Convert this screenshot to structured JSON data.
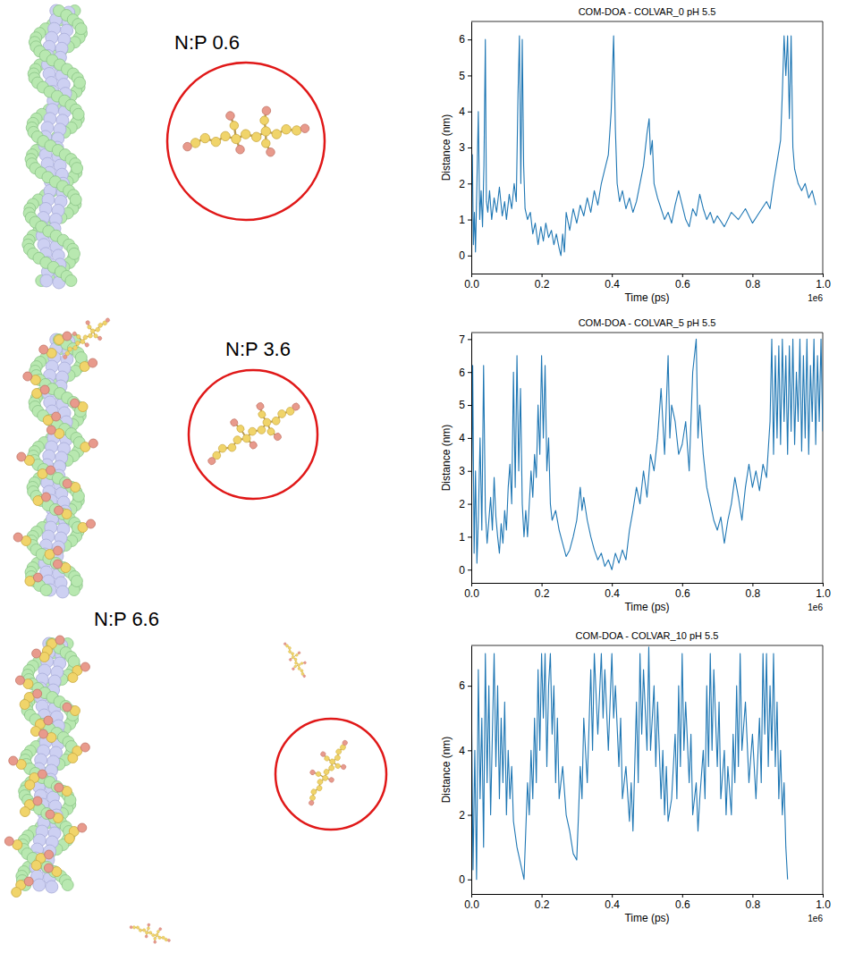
{
  "images": [
    {
      "label": "N:P 0.6"
    },
    {
      "label": "N:P 3.6"
    },
    {
      "label": "N:P 6.6"
    }
  ],
  "chart_data": [
    {
      "type": "line",
      "title": "COM-DOA - COLVAR_0 pH 5.5",
      "x_label": "Time (ps)",
      "y_label": "Distance (nm)",
      "x_offset_label": "1e6",
      "color": "#1f77b4",
      "grid": false,
      "xlim": [
        0,
        1
      ],
      "xticks": [
        {
          "value": 0,
          "label": "0.0"
        },
        {
          "value": 0.2,
          "label": "0.2"
        },
        {
          "value": 0.4,
          "label": "0.4"
        },
        {
          "value": 0.6,
          "label": "0.6"
        },
        {
          "value": 0.8,
          "label": "0.8"
        },
        {
          "value": 1,
          "label": "1.0"
        }
      ],
      "ylim": [
        -0.5,
        6.5
      ],
      "yticks": [
        0,
        1,
        2,
        3,
        4,
        5,
        6
      ],
      "x": [
        0,
        0.003,
        0.006,
        0.009,
        0.012,
        0.016,
        0.02,
        0.024,
        0.028,
        0.032,
        0.036,
        0.04,
        0.043,
        0.047,
        0.052,
        0.058,
        0.065,
        0.072,
        0.08,
        0.088,
        0.095,
        0.1,
        0.108,
        0.115,
        0.122,
        0.128,
        0.133,
        0.137,
        0.141,
        0.145,
        0.149,
        0.153,
        0.16,
        0.168,
        0.175,
        0.182,
        0.19,
        0.198,
        0.205,
        0.212,
        0.22,
        0.228,
        0.235,
        0.242,
        0.25,
        0.255,
        0.26,
        0.265,
        0.27,
        0.28,
        0.29,
        0.3,
        0.31,
        0.32,
        0.33,
        0.34,
        0.35,
        0.36,
        0.37,
        0.38,
        0.39,
        0.398,
        0.405,
        0.41,
        0.415,
        0.422,
        0.43,
        0.44,
        0.45,
        0.46,
        0.47,
        0.48,
        0.49,
        0.5,
        0.506,
        0.51,
        0.515,
        0.52,
        0.53,
        0.54,
        0.55,
        0.56,
        0.57,
        0.58,
        0.59,
        0.6,
        0.61,
        0.62,
        0.63,
        0.64,
        0.65,
        0.66,
        0.67,
        0.68,
        0.69,
        0.7,
        0.72,
        0.74,
        0.76,
        0.78,
        0.8,
        0.82,
        0.84,
        0.85,
        0.86,
        0.87,
        0.88,
        0.885,
        0.89,
        0.895,
        0.9,
        0.905,
        0.91,
        0.915,
        0.92,
        0.93,
        0.94,
        0.95,
        0.96,
        0.97,
        0.98
      ],
      "values": [
        1.5,
        2.8,
        0.3,
        1.2,
        0.1,
        2.0,
        4.0,
        1.0,
        1.8,
        0.8,
        2.5,
        6.0,
        1.5,
        1.2,
        1.8,
        1.0,
        1.6,
        1.2,
        1.9,
        1.1,
        1.5,
        1.0,
        1.7,
        1.3,
        2.0,
        1.5,
        4.5,
        6.1,
        2.0,
        6.0,
        2.5,
        1.3,
        1.0,
        1.2,
        0.6,
        0.9,
        0.3,
        0.8,
        0.4,
        0.9,
        0.5,
        0.7,
        0.3,
        0.6,
        0.2,
        0.0,
        0.6,
        0.1,
        1.2,
        0.7,
        1.3,
        0.9,
        1.4,
        1.1,
        1.6,
        1.2,
        1.8,
        1.4,
        2.0,
        2.4,
        2.8,
        4.0,
        6.1,
        3.5,
        2.0,
        1.5,
        1.8,
        1.3,
        1.6,
        1.2,
        1.5,
        2.0,
        2.5,
        3.4,
        3.8,
        2.8,
        3.2,
        2.0,
        1.6,
        1.3,
        1.0,
        1.2,
        0.9,
        1.4,
        1.8,
        1.4,
        1.0,
        0.8,
        1.3,
        1.1,
        1.7,
        1.3,
        1.0,
        1.2,
        0.9,
        1.1,
        0.8,
        1.2,
        1.0,
        1.3,
        0.9,
        1.2,
        1.5,
        1.3,
        2.0,
        2.6,
        3.2,
        4.5,
        6.1,
        5.0,
        6.1,
        3.8,
        6.1,
        3.0,
        2.4,
        2.0,
        1.8,
        2.0,
        1.6,
        1.8,
        1.4
      ]
    },
    {
      "type": "line",
      "title": "COM-DOA - COLVAR_5 pH 5.5",
      "x_label": "Time (ps)",
      "y_label": "Distance (nm)",
      "x_offset_label": "1e6",
      "color": "#1f77b4",
      "grid": false,
      "xlim": [
        0,
        1
      ],
      "xticks": [
        {
          "value": 0,
          "label": "0.0"
        },
        {
          "value": 0.2,
          "label": "0.2"
        },
        {
          "value": 0.4,
          "label": "0.4"
        },
        {
          "value": 0.6,
          "label": "0.6"
        },
        {
          "value": 0.8,
          "label": "0.8"
        },
        {
          "value": 1,
          "label": "1.0"
        }
      ],
      "ylim": [
        -0.4,
        7.2
      ],
      "yticks": [
        0,
        1,
        2,
        3,
        4,
        5,
        6,
        7
      ],
      "x": [
        0,
        0.004,
        0.008,
        0.012,
        0.016,
        0.02,
        0.025,
        0.03,
        0.035,
        0.04,
        0.045,
        0.05,
        0.055,
        0.06,
        0.065,
        0.07,
        0.075,
        0.08,
        0.085,
        0.09,
        0.095,
        0.1,
        0.105,
        0.11,
        0.115,
        0.12,
        0.125,
        0.13,
        0.135,
        0.14,
        0.145,
        0.15,
        0.155,
        0.16,
        0.165,
        0.17,
        0.175,
        0.18,
        0.185,
        0.19,
        0.195,
        0.2,
        0.205,
        0.21,
        0.215,
        0.22,
        0.225,
        0.23,
        0.24,
        0.25,
        0.26,
        0.27,
        0.28,
        0.29,
        0.3,
        0.31,
        0.315,
        0.32,
        0.33,
        0.34,
        0.35,
        0.36,
        0.37,
        0.38,
        0.39,
        0.4,
        0.41,
        0.42,
        0.43,
        0.44,
        0.45,
        0.46,
        0.47,
        0.48,
        0.49,
        0.5,
        0.51,
        0.52,
        0.53,
        0.54,
        0.55,
        0.56,
        0.565,
        0.57,
        0.58,
        0.59,
        0.6,
        0.61,
        0.62,
        0.63,
        0.64,
        0.645,
        0.65,
        0.66,
        0.67,
        0.68,
        0.69,
        0.7,
        0.71,
        0.72,
        0.73,
        0.74,
        0.75,
        0.76,
        0.77,
        0.78,
        0.79,
        0.8,
        0.81,
        0.82,
        0.83,
        0.84,
        0.85,
        0.855,
        0.86,
        0.865,
        0.87,
        0.875,
        0.88,
        0.885,
        0.89,
        0.895,
        0.9,
        0.905,
        0.91,
        0.915,
        0.92,
        0.925,
        0.93,
        0.935,
        0.94,
        0.945,
        0.95,
        0.955,
        0.96,
        0.965,
        0.97,
        0.975,
        0.98,
        0.985,
        0.99,
        0.995,
        1.0
      ],
      "values": [
        1.0,
        6.2,
        0.5,
        3.0,
        0.2,
        1.5,
        4.0,
        1.2,
        6.2,
        1.8,
        0.8,
        1.5,
        2.2,
        1.2,
        2.8,
        1.6,
        1.0,
        0.5,
        1.4,
        0.8,
        1.8,
        1.2,
        2.5,
        3.2,
        2.0,
        6.0,
        2.5,
        6.5,
        3.0,
        5.5,
        2.0,
        1.0,
        1.8,
        1.0,
        2.0,
        3.0,
        2.2,
        3.5,
        2.8,
        5.0,
        3.5,
        6.5,
        4.0,
        6.2,
        3.0,
        4.0,
        2.0,
        1.5,
        1.8,
        1.2,
        0.8,
        0.4,
        0.6,
        1.0,
        1.5,
        2.5,
        1.8,
        2.2,
        1.5,
        1.0,
        0.6,
        0.3,
        0.5,
        0.1,
        0.3,
        0.0,
        0.5,
        0.2,
        0.6,
        0.3,
        1.2,
        1.8,
        2.5,
        2.0,
        3.0,
        2.2,
        3.5,
        3.0,
        4.0,
        5.5,
        3.5,
        6.5,
        4.0,
        5.0,
        4.5,
        3.5,
        3.8,
        4.5,
        3.0,
        6.0,
        7.0,
        4.0,
        5.0,
        3.5,
        2.5,
        2.0,
        1.5,
        1.2,
        1.6,
        0.8,
        1.5,
        2.0,
        2.8,
        2.2,
        1.5,
        2.5,
        3.2,
        2.5,
        3.0,
        2.4,
        3.2,
        2.8,
        4.5,
        7.0,
        3.5,
        6.5,
        4.0,
        6.8,
        3.8,
        7.0,
        4.5,
        6.5,
        3.5,
        6.8,
        4.2,
        7.0,
        3.8,
        6.0,
        4.5,
        7.0,
        3.6,
        6.5,
        4.0,
        7.0,
        3.5,
        6.2,
        4.5,
        7.0,
        3.8,
        6.5,
        4.5,
        7.0,
        4.2
      ]
    },
    {
      "type": "line",
      "title": "COM-DOA - COLVAR_10 pH 5.5",
      "x_label": "Time (ps)",
      "y_label": "Distance (nm)",
      "x_offset_label": "1e6",
      "color": "#1f77b4",
      "grid": false,
      "xlim": [
        0,
        1
      ],
      "xticks": [
        {
          "value": 0,
          "label": "0.0"
        },
        {
          "value": 0.2,
          "label": "0.2"
        },
        {
          "value": 0.4,
          "label": "0.4"
        },
        {
          "value": 0.6,
          "label": "0.6"
        },
        {
          "value": 0.8,
          "label": "0.8"
        },
        {
          "value": 1,
          "label": "1.0"
        }
      ],
      "ylim": [
        -0.45,
        7.25
      ],
      "yticks": [
        0,
        2,
        4,
        6
      ],
      "x": [
        0,
        0.005,
        0.01,
        0.015,
        0.02,
        0.025,
        0.03,
        0.035,
        0.04,
        0.045,
        0.05,
        0.055,
        0.06,
        0.065,
        0.07,
        0.075,
        0.08,
        0.085,
        0.09,
        0.095,
        0.1,
        0.105,
        0.11,
        0.115,
        0.12,
        0.13,
        0.14,
        0.15,
        0.155,
        0.16,
        0.165,
        0.17,
        0.175,
        0.18,
        0.185,
        0.19,
        0.195,
        0.2,
        0.205,
        0.21,
        0.215,
        0.22,
        0.225,
        0.23,
        0.235,
        0.24,
        0.245,
        0.25,
        0.26,
        0.27,
        0.28,
        0.29,
        0.3,
        0.305,
        0.31,
        0.315,
        0.32,
        0.33,
        0.34,
        0.345,
        0.35,
        0.36,
        0.37,
        0.375,
        0.38,
        0.39,
        0.4,
        0.405,
        0.41,
        0.42,
        0.425,
        0.43,
        0.44,
        0.45,
        0.455,
        0.46,
        0.465,
        0.47,
        0.475,
        0.48,
        0.485,
        0.49,
        0.5,
        0.505,
        0.51,
        0.52,
        0.525,
        0.53,
        0.54,
        0.545,
        0.55,
        0.555,
        0.56,
        0.57,
        0.58,
        0.585,
        0.59,
        0.595,
        0.6,
        0.605,
        0.61,
        0.62,
        0.625,
        0.63,
        0.64,
        0.645,
        0.65,
        0.66,
        0.665,
        0.67,
        0.675,
        0.68,
        0.685,
        0.69,
        0.7,
        0.705,
        0.71,
        0.72,
        0.725,
        0.73,
        0.74,
        0.745,
        0.75,
        0.755,
        0.76,
        0.765,
        0.77,
        0.78,
        0.79,
        0.8,
        0.81,
        0.82,
        0.825,
        0.83,
        0.835,
        0.84,
        0.845,
        0.85,
        0.855,
        0.86,
        0.865,
        0.87,
        0.875,
        0.88,
        0.885,
        0.89,
        0.895,
        0.9
      ],
      "values": [
        6.0,
        0.3,
        4.0,
        0.0,
        6.5,
        2.5,
        5.0,
        1.0,
        7.0,
        3.0,
        6.0,
        2.0,
        4.5,
        7.0,
        3.5,
        6.0,
        2.5,
        5.0,
        3.0,
        5.5,
        2.0,
        4.0,
        2.5,
        3.5,
        1.8,
        1.0,
        0.5,
        0.0,
        1.5,
        3.0,
        2.0,
        4.0,
        2.5,
        5.0,
        3.0,
        6.5,
        4.0,
        7.0,
        5.0,
        7.0,
        3.5,
        6.0,
        7.0,
        4.5,
        6.0,
        3.0,
        5.0,
        2.5,
        3.5,
        2.0,
        1.5,
        0.8,
        0.6,
        2.0,
        3.5,
        2.5,
        5.0,
        3.0,
        6.5,
        4.0,
        7.0,
        4.5,
        7.0,
        5.0,
        6.5,
        4.0,
        7.0,
        5.0,
        6.0,
        3.5,
        5.0,
        2.5,
        3.5,
        1.8,
        3.0,
        1.5,
        3.5,
        5.5,
        3.0,
        7.0,
        4.5,
        6.5,
        4.0,
        7.2,
        4.0,
        6.0,
        3.5,
        5.5,
        2.5,
        4.0,
        2.0,
        3.5,
        1.8,
        2.5,
        4.5,
        2.5,
        6.0,
        3.5,
        7.0,
        4.0,
        5.5,
        3.0,
        4.5,
        2.0,
        3.0,
        1.5,
        2.5,
        4.0,
        2.5,
        6.0,
        3.5,
        7.0,
        4.0,
        6.5,
        3.5,
        5.5,
        2.5,
        4.0,
        2.0,
        3.5,
        2.0,
        4.5,
        3.0,
        6.0,
        3.5,
        7.0,
        4.0,
        5.5,
        3.0,
        4.5,
        2.5,
        5.0,
        3.0,
        7.0,
        4.5,
        7.0,
        3.5,
        6.0,
        4.0,
        7.0,
        3.5,
        5.5,
        2.5,
        4.0,
        2.0,
        3.0,
        1.0,
        0.0
      ]
    }
  ]
}
